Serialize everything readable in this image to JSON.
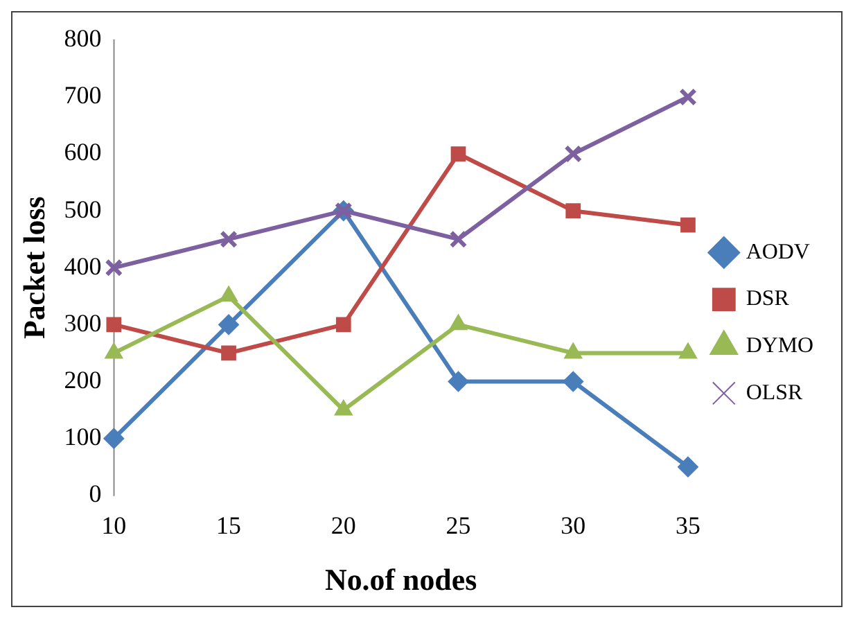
{
  "chart_data": {
    "type": "line",
    "xlabel": "No.of nodes",
    "ylabel": "Packet loss",
    "categories": [
      "10",
      "15",
      "20",
      "25",
      "30",
      "35"
    ],
    "series": [
      {
        "name": "AODV",
        "color": "#4a7ebb",
        "marker": "diamond",
        "values": [
          100,
          300,
          500,
          200,
          200,
          50
        ]
      },
      {
        "name": "DSR",
        "color": "#be4b48",
        "marker": "square",
        "values": [
          300,
          250,
          300,
          600,
          500,
          475
        ]
      },
      {
        "name": "DYMO",
        "color": "#98b954",
        "marker": "triangle",
        "values": [
          250,
          350,
          150,
          300,
          250,
          250
        ]
      },
      {
        "name": "OLSR",
        "color": "#7d60a0",
        "marker": "cross",
        "values": [
          400,
          450,
          500,
          450,
          600,
          700
        ]
      }
    ],
    "ylim": [
      0,
      800
    ],
    "yticks": [
      0,
      100,
      200,
      300,
      400,
      500,
      600,
      700,
      800
    ],
    "grid": false,
    "legend": "right"
  }
}
